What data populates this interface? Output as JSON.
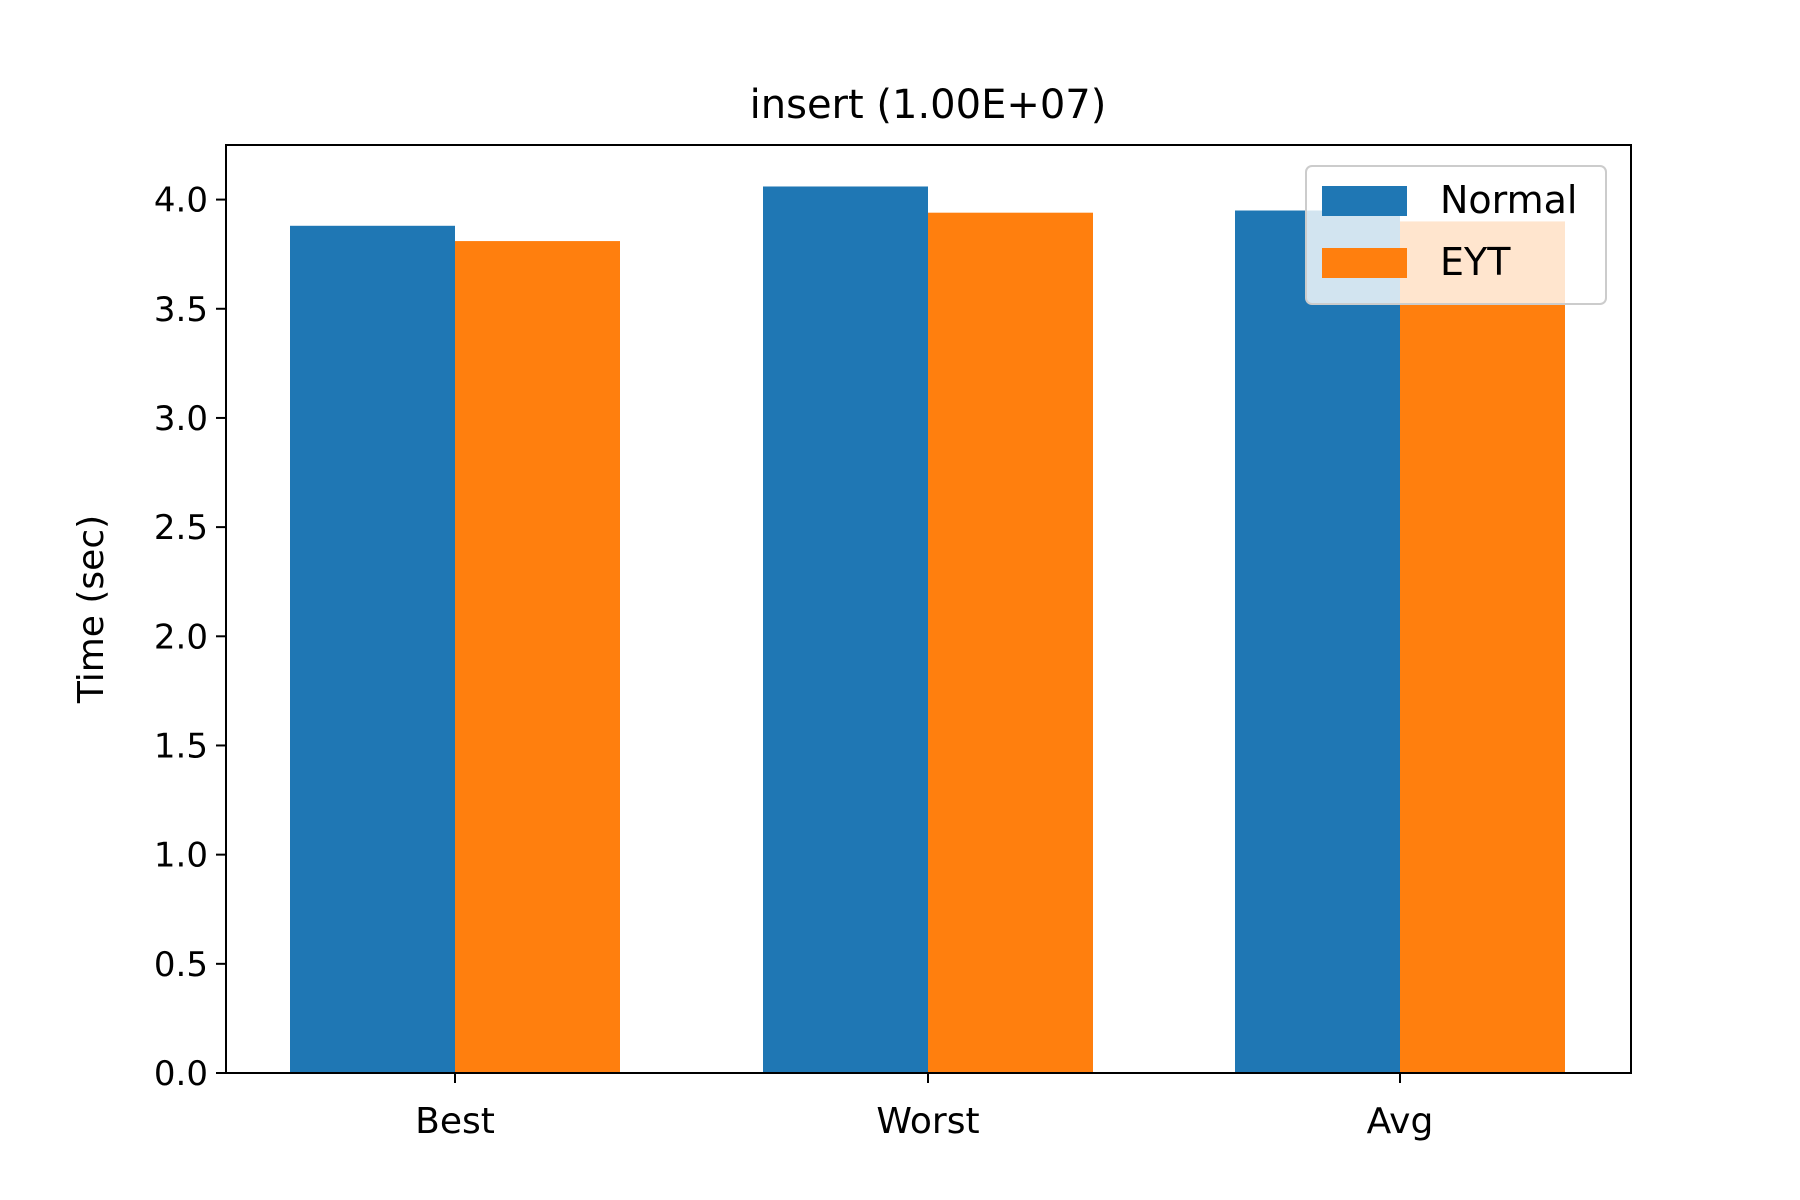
{
  "chart_data": {
    "type": "bar",
    "title": "insert (1.00E+07)",
    "xlabel": "",
    "ylabel": "Time (sec)",
    "categories": [
      "Best",
      "Worst",
      "Avg"
    ],
    "series": [
      {
        "name": "Normal",
        "color": "#1f77b4",
        "values": [
          3.88,
          4.06,
          3.95
        ]
      },
      {
        "name": "EYT",
        "color": "#ff7f0e",
        "values": [
          3.81,
          3.94,
          3.9
        ]
      }
    ],
    "ylim": [
      0,
      4.25
    ],
    "yticks": [
      "0.0",
      "0.5",
      "1.0",
      "1.5",
      "2.0",
      "2.5",
      "3.0",
      "3.5",
      "4.0"
    ],
    "grid": false,
    "legend_position": "top-right"
  }
}
